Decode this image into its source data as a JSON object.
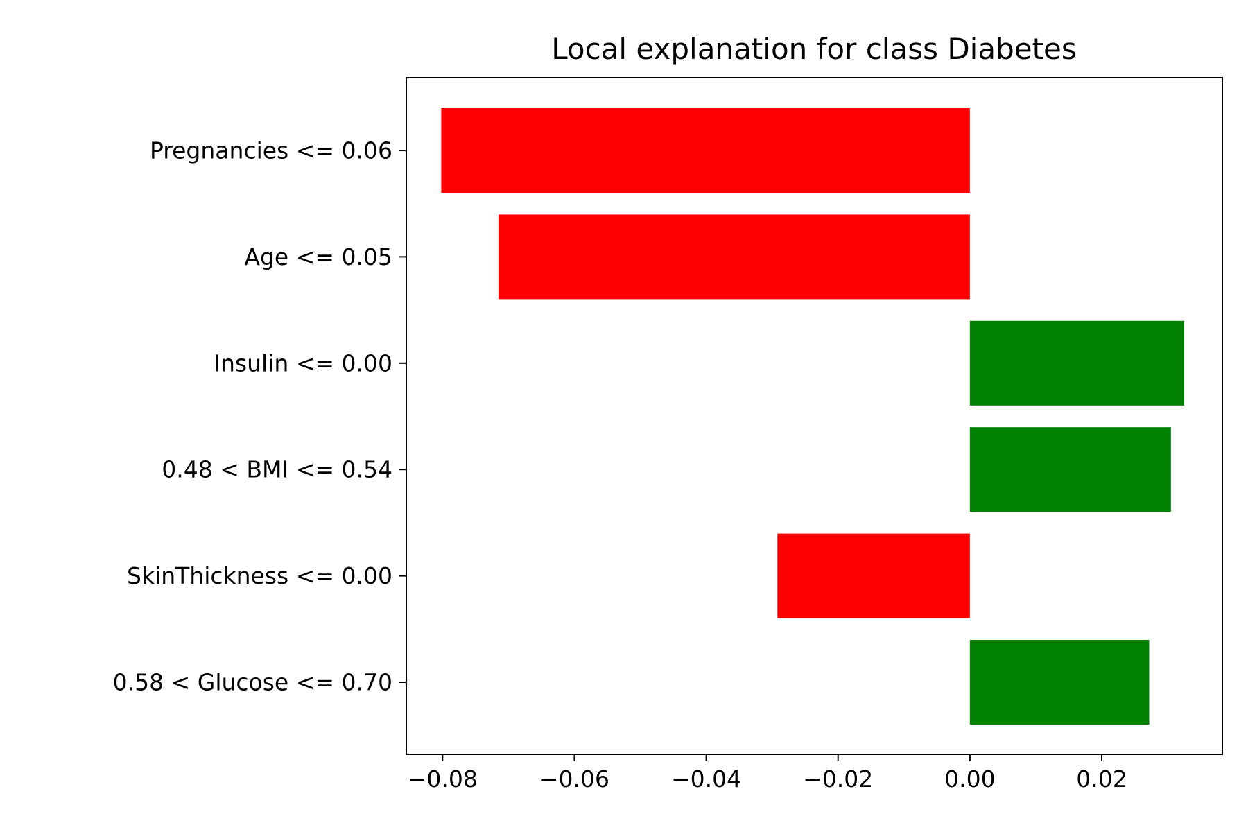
{
  "chart_data": {
    "type": "bar",
    "orientation": "horizontal",
    "title": "Local explanation for class Diabetes",
    "xlabel": "",
    "ylabel": "",
    "categories": [
      "Pregnancies <= 0.06",
      "Age <= 0.05",
      "Insulin <= 0.00",
      "0.48 < BMI <= 0.54",
      "SkinThickness <= 0.00",
      "0.58 < Glucose <= 0.70"
    ],
    "values": [
      -0.0802,
      -0.0715,
      0.0325,
      0.0305,
      -0.0292,
      0.0272
    ],
    "xlim": [
      -0.0855,
      0.0383
    ],
    "xticks": [
      -0.08,
      -0.06,
      -0.04,
      -0.02,
      0.0,
      0.02
    ],
    "xtick_labels": [
      "−0.08",
      "−0.06",
      "−0.04",
      "−0.02",
      "0.00",
      "0.02"
    ],
    "grid": false,
    "legend": "none",
    "colors": {
      "positive": "#008000",
      "negative": "#ff0000"
    }
  }
}
